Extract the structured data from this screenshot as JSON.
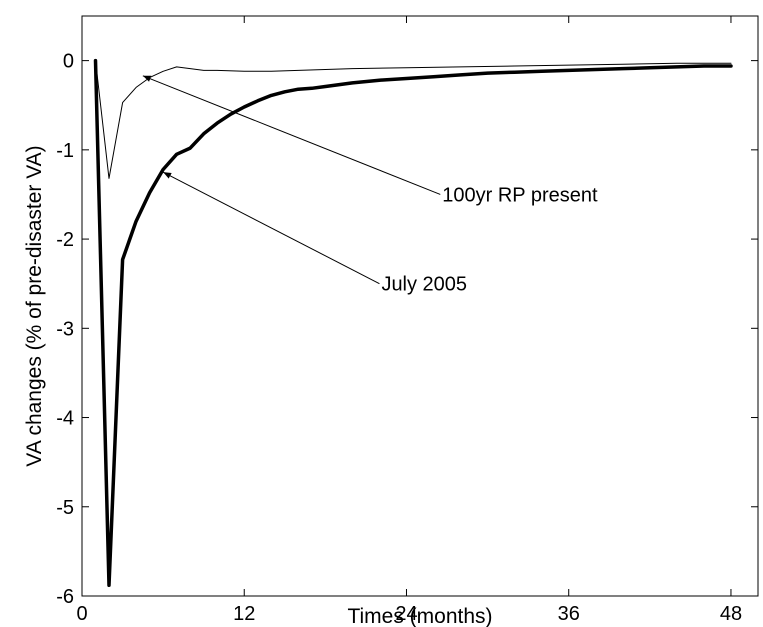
{
  "chart_data": {
    "type": "line",
    "title": "",
    "xlabel": "Times (months)",
    "ylabel": "VA changes (% of pre-disaster VA)",
    "xlim": [
      0,
      50
    ],
    "ylim": [
      -6,
      0.5
    ],
    "xticks": [
      0,
      12,
      24,
      36,
      48
    ],
    "yticks": [
      -6,
      -5,
      -4,
      -3,
      -2,
      -1,
      0
    ],
    "grid": false,
    "legend": "none",
    "series": [
      {
        "name": "July 2005",
        "color": "#000000",
        "linewidth": "bold",
        "x": [
          1,
          2,
          3,
          4,
          5,
          6,
          7,
          8,
          9,
          10,
          11,
          12,
          13,
          14,
          15,
          16,
          17,
          18,
          20,
          22,
          24,
          26,
          28,
          30,
          32,
          34,
          36,
          38,
          40,
          42,
          44,
          46,
          48
        ],
        "y": [
          0,
          -5.88,
          -2.23,
          -1.8,
          -1.48,
          -1.22,
          -1.05,
          -0.98,
          -0.82,
          -0.7,
          -0.6,
          -0.52,
          -0.45,
          -0.39,
          -0.35,
          -0.32,
          -0.31,
          -0.29,
          -0.25,
          -0.22,
          -0.2,
          -0.18,
          -0.16,
          -0.14,
          -0.13,
          -0.12,
          -0.11,
          -0.1,
          -0.09,
          -0.08,
          -0.07,
          -0.06,
          -0.06
        ]
      },
      {
        "name": "100yr RP present",
        "color": "#000000",
        "linewidth": "thin",
        "x": [
          1,
          2,
          3,
          4,
          5,
          6,
          7,
          8,
          9,
          10,
          12,
          14,
          16,
          18,
          20,
          24,
          28,
          32,
          36,
          40,
          44,
          48
        ],
        "y": [
          0,
          -1.32,
          -0.47,
          -0.3,
          -0.19,
          -0.12,
          -0.07,
          -0.09,
          -0.11,
          -0.11,
          -0.12,
          -0.12,
          -0.11,
          -0.1,
          -0.09,
          -0.08,
          -0.07,
          -0.06,
          -0.05,
          -0.04,
          -0.03,
          -0.03
        ]
      }
    ],
    "annotations": [
      {
        "text": "100yr RP present",
        "target_series": "100yr RP present",
        "target": [
          4.5,
          -0.17
        ],
        "text_at": [
          26.5,
          -1.5
        ]
      },
      {
        "text": "July 2005",
        "target_series": "July 2005",
        "target": [
          6,
          -1.25
        ],
        "text_at": [
          22,
          -2.5
        ]
      }
    ]
  }
}
